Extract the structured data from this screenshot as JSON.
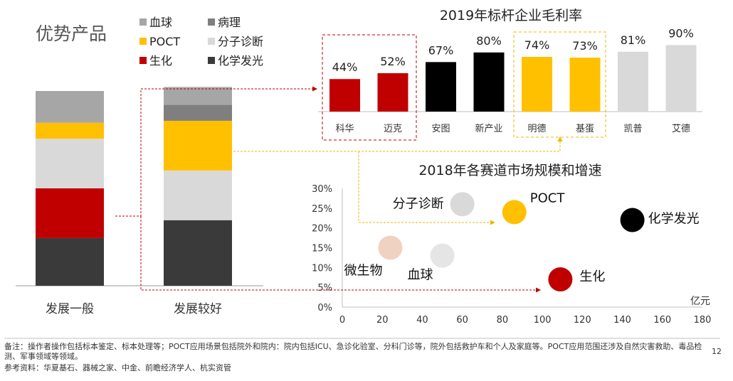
{
  "page_title": "优势产品",
  "legend": [
    {
      "label": "血球",
      "color": "#a6a6a6"
    },
    {
      "label": "病理",
      "color": "#7f7f7f"
    },
    {
      "label": "POCT",
      "color": "#ffc000"
    },
    {
      "label": "分子诊断",
      "color": "#d9d9d9"
    },
    {
      "label": "生化",
      "color": "#c00000"
    },
    {
      "label": "化学发光",
      "color": "#3a3a3a"
    }
  ],
  "footer": {
    "note": "备注：操作者操作包括标本鉴定、标本处理等；POCT应用场景包括院外和院内：院内包括ICU、急诊化验室、分科门诊等，院外包括救护车和个人及家庭等。POCT应用范围还涉及自然灾害救助、毒品检测、军事领域等领域。",
    "source": "参考资料：华夏基石、器械之家、中金、前瞻经济学人、杭实资管"
  },
  "page_number": "12",
  "chart_data": [
    {
      "type": "bar",
      "stacked": true,
      "categories": [
        "发展一般",
        "发展较好"
      ],
      "series": [
        {
          "name": "化学发光",
          "color": "#3a3a3a",
          "values": [
            24,
            33
          ]
        },
        {
          "name": "生化",
          "color": "#c00000",
          "values": [
            25,
            0
          ]
        },
        {
          "name": "分子诊断",
          "color": "#d9d9d9",
          "values": [
            25,
            25
          ]
        },
        {
          "name": "POCT",
          "color": "#ffc000",
          "values": [
            8,
            25
          ]
        },
        {
          "name": "病理",
          "color": "#7f7f7f",
          "values": [
            0,
            8
          ]
        },
        {
          "name": "血球",
          "color": "#a6a6a6",
          "values": [
            16,
            9
          ]
        }
      ],
      "ylim": [
        0,
        98
      ]
    },
    {
      "type": "bar",
      "title": "2019年标杆企业毛利率",
      "categories": [
        "科华",
        "迈克",
        "安图",
        "新产业",
        "明德",
        "基蛋",
        "凯普",
        "艾德"
      ],
      "values": [
        44,
        52,
        67,
        80,
        74,
        73,
        81,
        90
      ],
      "labels": [
        "44%",
        "52%",
        "67%",
        "80%",
        "74%",
        "73%",
        "81%",
        "90%"
      ],
      "colors": [
        "#c00000",
        "#c00000",
        "#000000",
        "#000000",
        "#ffc000",
        "#ffc000",
        "#d9d9d9",
        "#d9d9d9"
      ],
      "ylim": [
        0,
        100
      ]
    },
    {
      "type": "scatter",
      "title": "2018年各赛道市场规模和增速",
      "xlabel": "亿元",
      "xlim": [
        0,
        180
      ],
      "ylim": [
        0,
        30
      ],
      "x_ticks": [
        "0",
        "20",
        "40",
        "60",
        "80",
        "100",
        "120",
        "140",
        "160",
        "180"
      ],
      "y_ticks": [
        "0%",
        "5%",
        "10%",
        "15%",
        "20%",
        "25%",
        "30%"
      ],
      "points": [
        {
          "name": "分子诊断",
          "x": 60,
          "y": 26,
          "color": "#d9d9d9"
        },
        {
          "name": "POCT",
          "x": 86,
          "y": 24,
          "color": "#ffc000"
        },
        {
          "name": "化学发光",
          "x": 145,
          "y": 22,
          "color": "#000000"
        },
        {
          "name": "微生物",
          "x": 24,
          "y": 15,
          "color": "#f0d2c0"
        },
        {
          "name": "血球",
          "x": 50,
          "y": 13,
          "color": "#e5e5e5"
        },
        {
          "name": "生化",
          "x": 109,
          "y": 7,
          "color": "#c00000"
        }
      ]
    }
  ]
}
